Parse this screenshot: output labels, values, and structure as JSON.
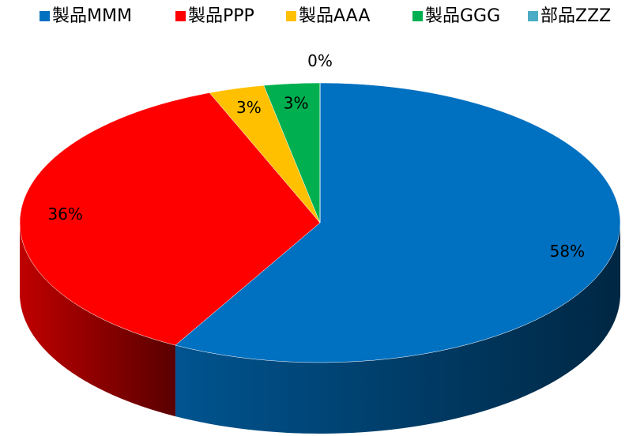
{
  "chart_data": {
    "type": "pie",
    "categories": [
      "製品MMM",
      "製品PPP",
      "製品AAA",
      "製品GGG",
      "部品ZZZ"
    ],
    "values": [
      58,
      36,
      3,
      3,
      0
    ],
    "value_labels": [
      "58%",
      "36%",
      "3%",
      "3%",
      "0%"
    ],
    "colors": [
      "#0070c0",
      "#ff0000",
      "#ffc000",
      "#00b050",
      "#4bacc6"
    ],
    "legend": "top"
  }
}
